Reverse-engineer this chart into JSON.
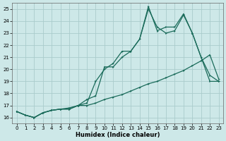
{
  "xlabel": "Humidex (Indice chaleur)",
  "bg_color": "#cde8e8",
  "grid_color": "#aacccc",
  "line_color": "#1a6b5a",
  "xlim": [
    -0.5,
    23.5
  ],
  "ylim": [
    15.5,
    25.5
  ],
  "xticks": [
    0,
    1,
    2,
    3,
    4,
    5,
    6,
    7,
    8,
    9,
    10,
    11,
    12,
    13,
    14,
    15,
    16,
    17,
    18,
    19,
    20,
    21,
    22,
    23
  ],
  "yticks": [
    16,
    17,
    18,
    19,
    20,
    21,
    22,
    23,
    24,
    25
  ],
  "line1_x": [
    0,
    1,
    2,
    3,
    4,
    5,
    6,
    7,
    8,
    9,
    10,
    11,
    12,
    13,
    14,
    15,
    16,
    17,
    18,
    19,
    20,
    21,
    22,
    23
  ],
  "line1_y": [
    16.5,
    16.2,
    16.0,
    16.4,
    16.6,
    16.7,
    16.7,
    17.0,
    17.2,
    19.0,
    20.0,
    20.5,
    21.5,
    21.5,
    22.5,
    25.0,
    23.5,
    23.0,
    23.2,
    24.5,
    23.0,
    21.0,
    19.0,
    19.0
  ],
  "line2_x": [
    0,
    1,
    2,
    3,
    4,
    5,
    6,
    7,
    8,
    9,
    10,
    11,
    12,
    13,
    14,
    15,
    16,
    17,
    18,
    19,
    20,
    21,
    22,
    23
  ],
  "line2_y": [
    16.5,
    16.2,
    16.0,
    16.4,
    16.6,
    16.7,
    16.7,
    17.0,
    17.5,
    17.8,
    20.2,
    20.2,
    21.0,
    21.5,
    22.5,
    25.2,
    23.2,
    23.5,
    23.5,
    24.6,
    23.0,
    21.0,
    19.5,
    19.0
  ],
  "line3_x": [
    0,
    1,
    2,
    3,
    4,
    5,
    6,
    7,
    8,
    9,
    10,
    11,
    12,
    13,
    14,
    15,
    16,
    17,
    18,
    19,
    20,
    21,
    22,
    23
  ],
  "line3_y": [
    16.5,
    16.2,
    16.0,
    16.4,
    16.6,
    16.7,
    16.8,
    17.0,
    17.0,
    17.2,
    17.5,
    17.7,
    17.9,
    18.2,
    18.5,
    18.8,
    19.0,
    19.3,
    19.6,
    19.9,
    20.3,
    20.7,
    21.2,
    19.2
  ]
}
